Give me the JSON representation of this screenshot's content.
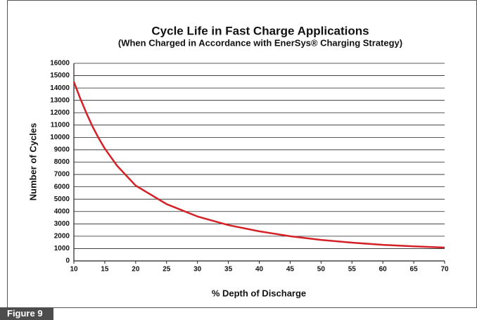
{
  "chart_data": {
    "type": "line",
    "title": "Cycle Life in Fast Charge Applications",
    "subtitle": "(When Charged in Accordance with EnerSys® Charging Strategy)",
    "x_label": "% Depth of Discharge",
    "y_label": "Number of Cycles",
    "figure_label": "Figure 9",
    "x": [
      10,
      11,
      12,
      13,
      14,
      15,
      17,
      20,
      25,
      30,
      35,
      40,
      45,
      50,
      55,
      60,
      65,
      70
    ],
    "series": [
      {
        "name": "Cycles",
        "color": "#d42027",
        "values": [
          14500,
          13200,
          12000,
          10900,
          9950,
          9100,
          7700,
          6100,
          4600,
          3600,
          2900,
          2400,
          2000,
          1700,
          1480,
          1300,
          1180,
          1080
        ]
      }
    ],
    "xlim": [
      10,
      70
    ],
    "xticks": [
      10,
      15,
      20,
      25,
      30,
      35,
      40,
      45,
      50,
      55,
      60,
      65,
      70
    ],
    "ylim": [
      0,
      16000
    ],
    "yticks": [
      0,
      1000,
      2000,
      3000,
      4000,
      5000,
      6000,
      7000,
      8000,
      9000,
      10000,
      11000,
      12000,
      13000,
      14000,
      15000,
      16000
    ],
    "grid": true
  }
}
